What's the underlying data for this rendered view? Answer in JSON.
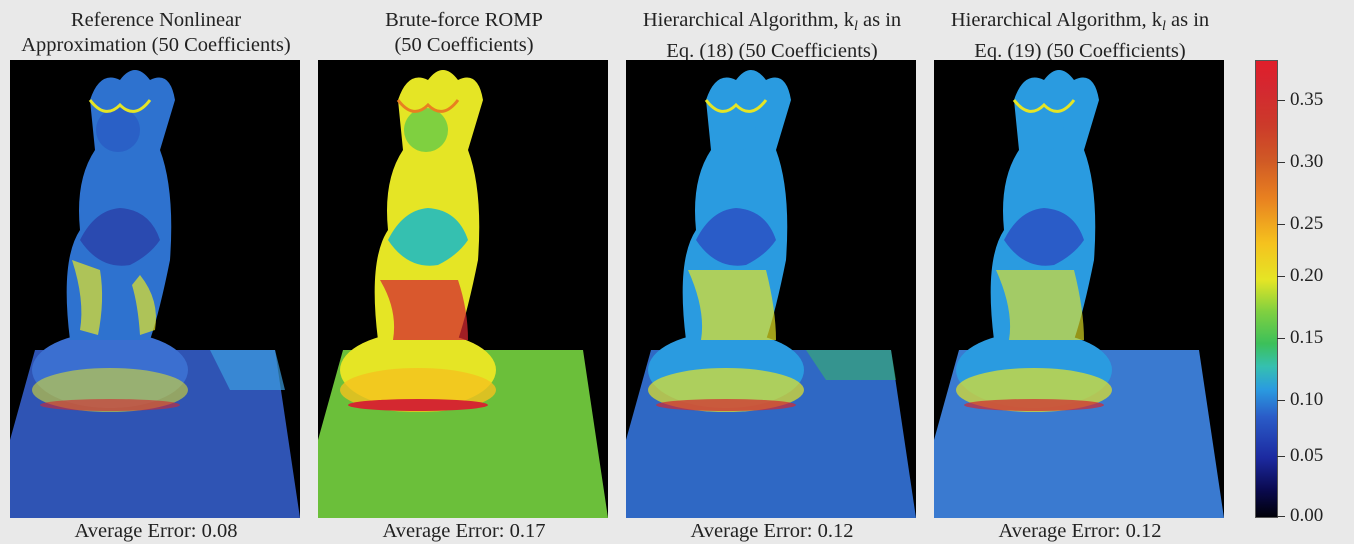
{
  "panels": [
    {
      "title_line1": "Reference Nonlinear",
      "title_line2": "Approximation (50 Coefficients)",
      "caption": "Average Error: 0.08"
    },
    {
      "title_line1": "Brute-force ROMP",
      "title_line2": "(50 Coefficients)",
      "caption": "Average Error: 0.17"
    },
    {
      "title_line1": "Hierarchical Algorithm, k",
      "title_sub": "l",
      "title_line1_end": " as in",
      "title_line2": "Eq. (18) (50 Coefficients)",
      "caption": "Average Error: 0.12"
    },
    {
      "title_line1": "Hierarchical Algorithm, k",
      "title_sub": "l",
      "title_line1_end": " as in",
      "title_line2": "Eq. (19) (50 Coefficients)",
      "caption": "Average Error: 0.12"
    }
  ],
  "colorbar": {
    "ticks": [
      "0.35",
      "0.30",
      "0.25",
      "0.20",
      "0.15",
      "0.10",
      "0.05",
      "0.00"
    ]
  },
  "colors": {
    "background": "#e9e9e9",
    "image_background": "#000000",
    "floor_panel1": "#2f54b4",
    "floor_panel2": "#6bbf3a",
    "floor_panel3": "#2f68c4",
    "floor_panel4": "#3a7ad0"
  }
}
